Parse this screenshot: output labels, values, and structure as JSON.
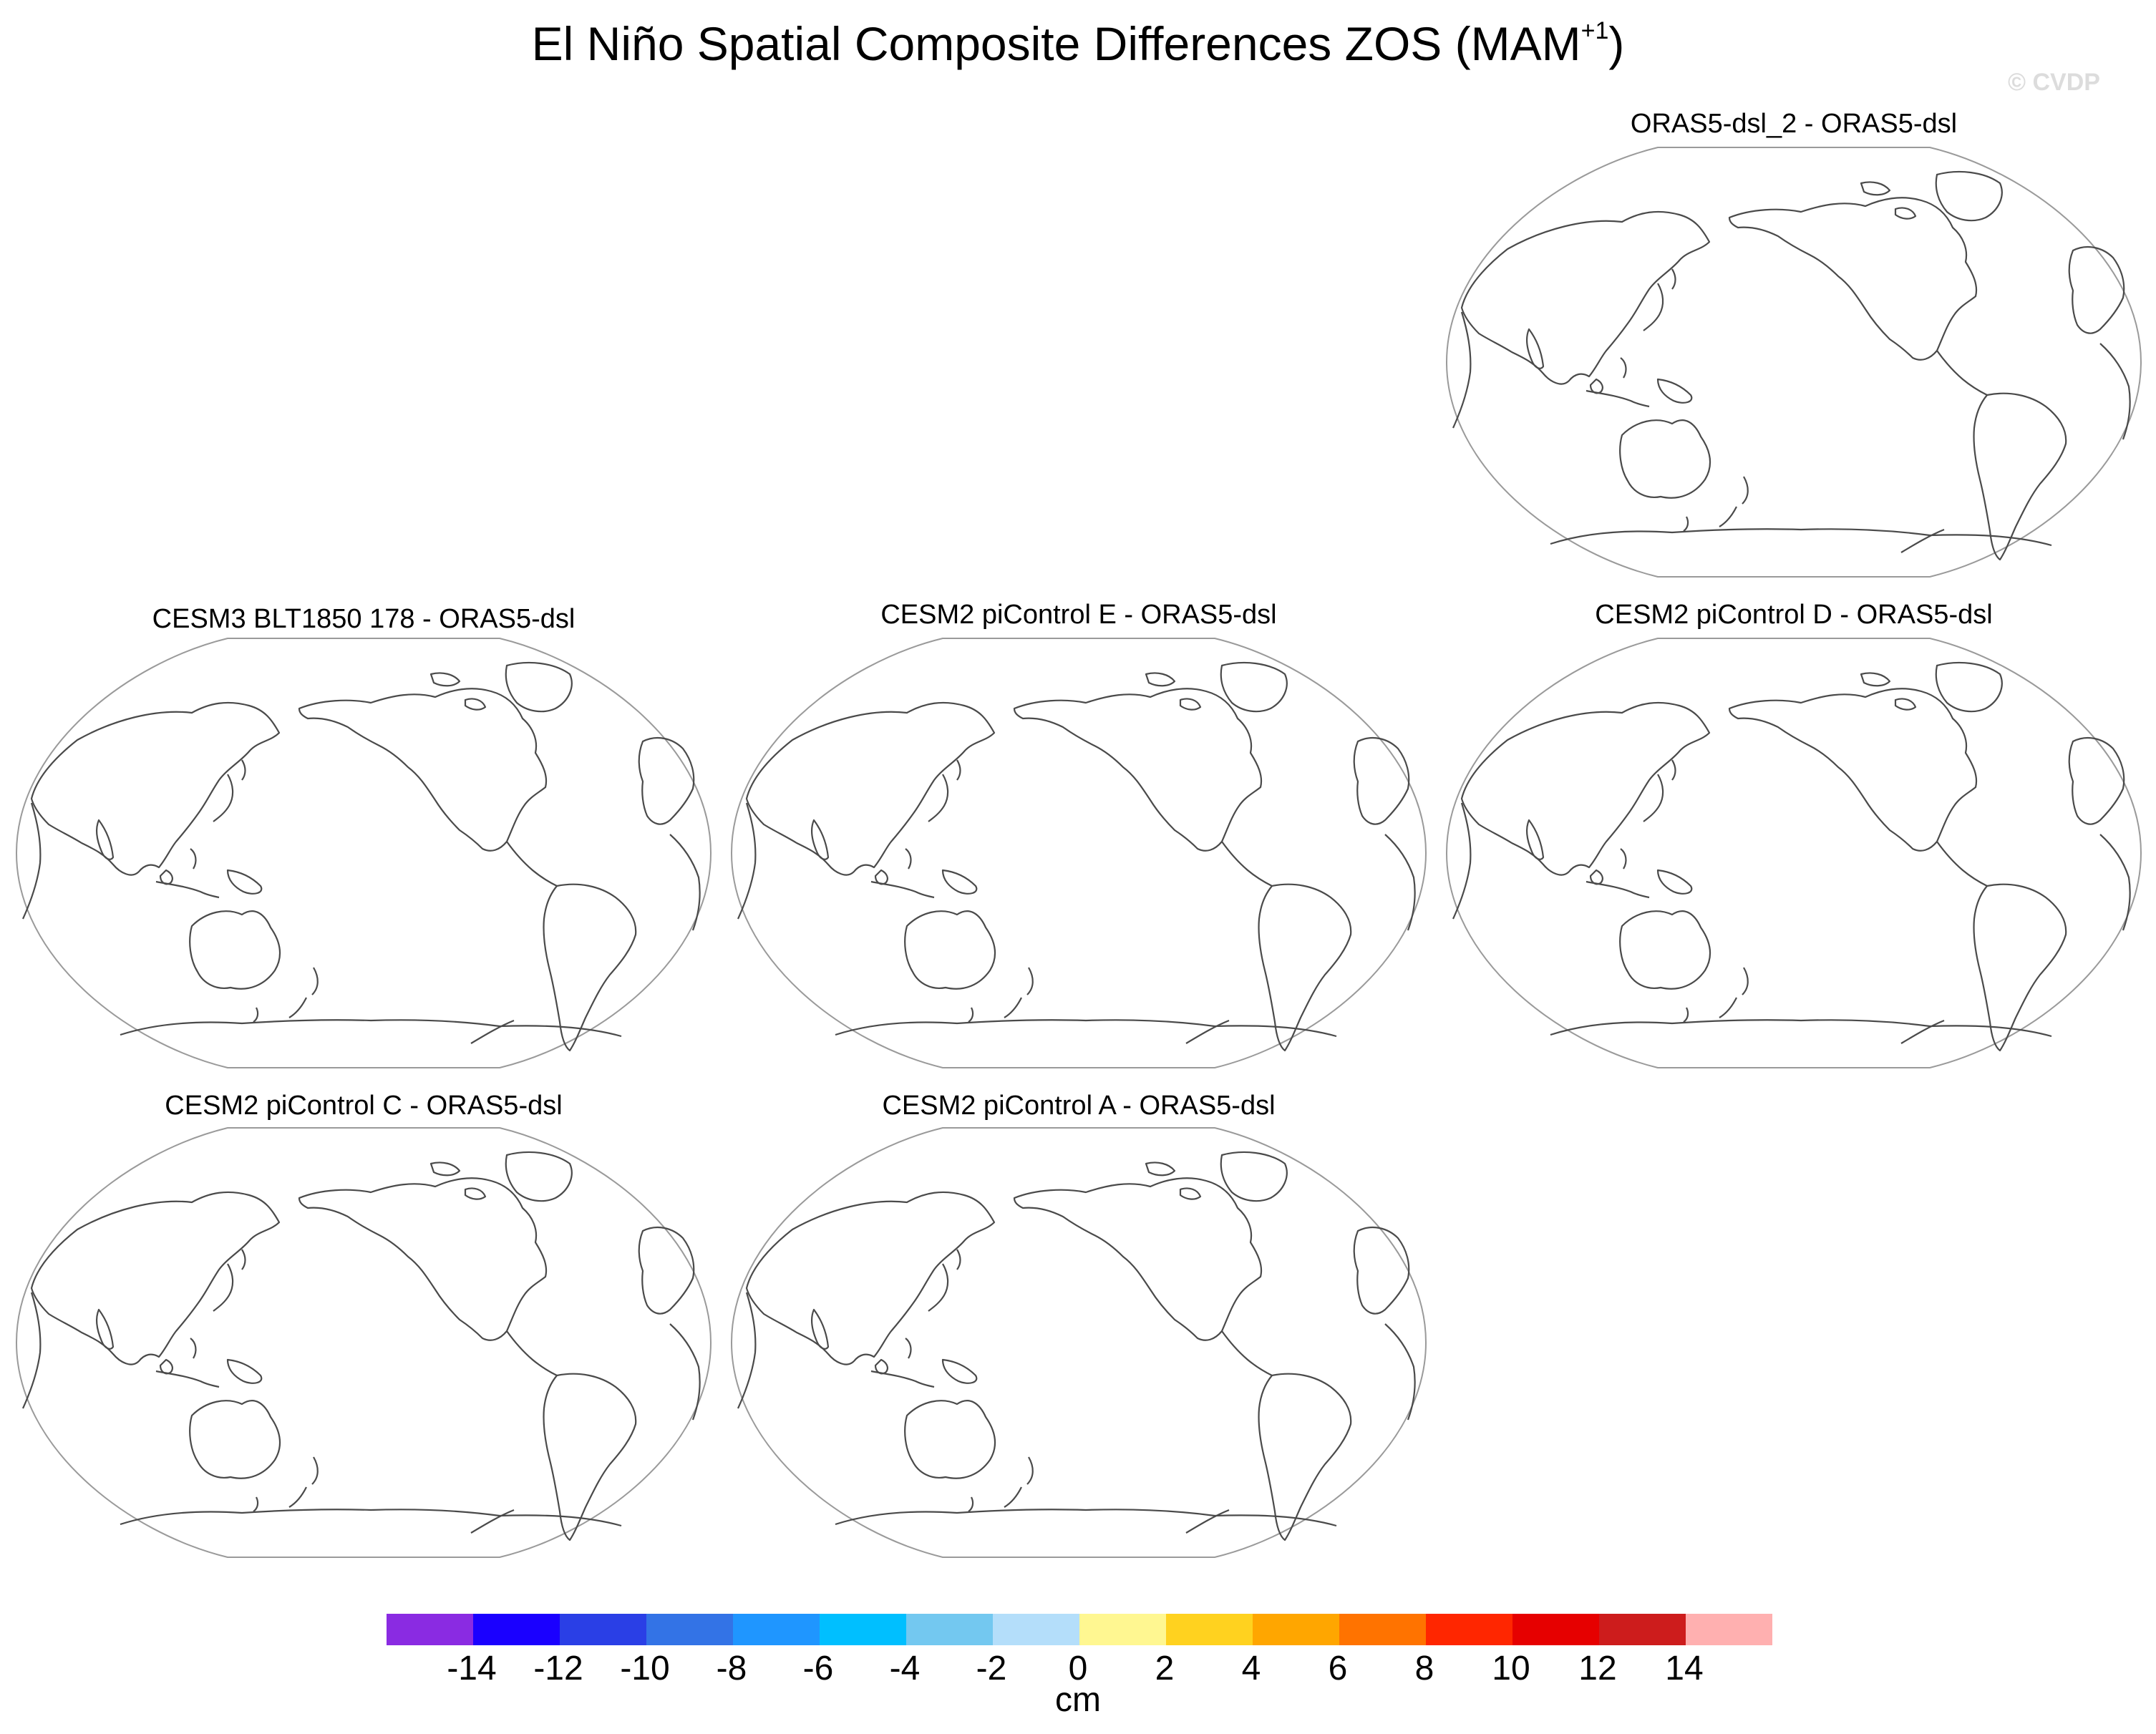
{
  "title": {
    "main": "El Niño Spatial Composite Differences ZOS (MAM",
    "superscript": "+1",
    "close": ")"
  },
  "watermark": "© CVDP",
  "panels": [
    {
      "id": "oras5-dsl-2",
      "title": "ORAS5-dsl_2 - ORAS5-dsl"
    },
    {
      "id": "cesm3-blt1850-178",
      "title": "CESM3 BLT1850 178 - ORAS5-dsl"
    },
    {
      "id": "cesm2-picontrol-e",
      "title": "CESM2 piControl E - ORAS5-dsl"
    },
    {
      "id": "cesm2-picontrol-d",
      "title": "CESM2 piControl D - ORAS5-dsl"
    },
    {
      "id": "cesm2-picontrol-c",
      "title": "CESM2 piControl C - ORAS5-dsl"
    },
    {
      "id": "cesm2-picontrol-a",
      "title": "CESM2 piControl A - ORAS5-dsl"
    }
  ],
  "chart_data": {
    "type": "heatmap",
    "map_projection": "global, Pacific-centered",
    "fields_shown": "no shading drawn (coastlines only)",
    "colorbar": {
      "units": "cm",
      "tick_labels": [
        "-14",
        "-12",
        "-10",
        "-8",
        "-6",
        "-4",
        "-2",
        "0",
        "2",
        "4",
        "6",
        "8",
        "10",
        "12",
        "14"
      ],
      "colors": [
        "#8a2be2",
        "#1a00ff",
        "#2a3fe6",
        "#3373e6",
        "#1f96ff",
        "#00bfff",
        "#73c8f0",
        "#b4defa",
        "#fff791",
        "#ffd21f",
        "#ffa600",
        "#ff7300",
        "#ff2600",
        "#e60000",
        "#cd1c1c",
        "#ffb0b0"
      ]
    }
  }
}
